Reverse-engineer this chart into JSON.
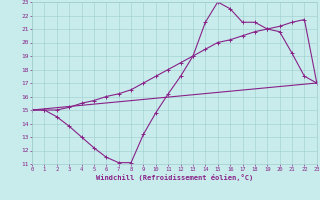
{
  "xlabel": "Windchill (Refroidissement éolien,°C)",
  "background_color": "#c8ecec",
  "grid_color": "#a0cccc",
  "line_color": "#882288",
  "xmin": 0,
  "xmax": 23,
  "ymin": 11,
  "ymax": 23,
  "line1_x": [
    0,
    1,
    2,
    3,
    4,
    5,
    6,
    7,
    8,
    9,
    10,
    11,
    12,
    13,
    14,
    15,
    16,
    17,
    18,
    19,
    20,
    21,
    22,
    23
  ],
  "line1_y": [
    15,
    15,
    14.5,
    13.8,
    13.0,
    12.2,
    11.5,
    11.1,
    11.1,
    13.2,
    14.8,
    16.2,
    17.5,
    19.0,
    21.5,
    23.0,
    22.5,
    21.5,
    21.5,
    21.0,
    20.8,
    19.2,
    17.5,
    17.0
  ],
  "line2_x": [
    0,
    1,
    2,
    3,
    4,
    5,
    6,
    7,
    8,
    9,
    10,
    11,
    12,
    13,
    14,
    15,
    16,
    17,
    18,
    19,
    20,
    21,
    22,
    23
  ],
  "line2_y": [
    15,
    15,
    15,
    15.2,
    15.5,
    15.7,
    16.0,
    16.2,
    16.5,
    17.0,
    17.5,
    18.0,
    18.5,
    19.0,
    19.5,
    20.0,
    20.2,
    20.5,
    20.8,
    21.0,
    21.2,
    21.5,
    21.7,
    17.0
  ],
  "line3_x": [
    0,
    23
  ],
  "line3_y": [
    15,
    17.0
  ]
}
